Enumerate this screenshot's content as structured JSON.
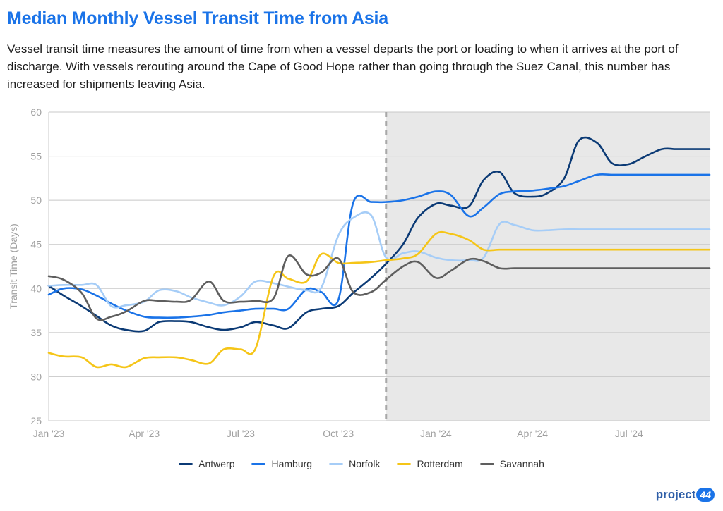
{
  "title": "Median Monthly Vessel Transit Time from Asia",
  "subtitle": "Vessel transit time measures the amount of time from when a vessel departs the port or loading to when it arrives at the port of discharge. With vessels rerouting around the Cape of Good Hope rather than going through the Suez Canal, this number has increased for shipments leaving Asia.",
  "logo": {
    "text": "project",
    "badge": "44"
  },
  "colors": {
    "shade": "#e8e8e8",
    "grid": "#c8c8c8",
    "divider": "#a8a8a8",
    "axis_text": "#a0a0a0"
  },
  "chart_data": {
    "type": "line",
    "title": "",
    "xlabel": "",
    "ylabel": "Transit Time (Days)",
    "ylim": [
      25,
      60
    ],
    "yticks": [
      25,
      30,
      35,
      40,
      45,
      50,
      55,
      60
    ],
    "xlim": [
      "2023-01-01",
      "2024-09-15"
    ],
    "xticks": [
      {
        "date": "2023-01-01",
        "label": "Jan '23"
      },
      {
        "date": "2023-04-01",
        "label": "Apr '23"
      },
      {
        "date": "2023-07-01",
        "label": "Jul '23"
      },
      {
        "date": "2023-10-01",
        "label": "Oct '23"
      },
      {
        "date": "2024-01-01",
        "label": "Jan '24"
      },
      {
        "date": "2024-04-01",
        "label": "Apr '24"
      },
      {
        "date": "2024-07-01",
        "label": "Jul '24"
      }
    ],
    "shaded_region": {
      "start": "2023-11-15",
      "end": "2024-09-15"
    },
    "grid": true,
    "legend_position": "bottom",
    "series": [
      {
        "name": "Antwerp",
        "color": "#0b3a75",
        "x": [
          "2023-01-01",
          "2023-01-15",
          "2023-02-01",
          "2023-02-15",
          "2023-03-01",
          "2023-03-15",
          "2023-04-01",
          "2023-04-15",
          "2023-05-01",
          "2023-05-15",
          "2023-06-01",
          "2023-06-15",
          "2023-07-01",
          "2023-07-15",
          "2023-08-01",
          "2023-08-15",
          "2023-09-01",
          "2023-09-15",
          "2023-10-01",
          "2023-10-15",
          "2023-11-01",
          "2023-11-15",
          "2023-12-01",
          "2023-12-15",
          "2024-01-01",
          "2024-01-15",
          "2024-02-01",
          "2024-02-15",
          "2024-03-01",
          "2024-03-15",
          "2024-04-01",
          "2024-04-15",
          "2024-05-01",
          "2024-05-15",
          "2024-06-01",
          "2024-06-15",
          "2024-07-01",
          "2024-07-15",
          "2024-08-01",
          "2024-08-15",
          "2024-09-01",
          "2024-09-15"
        ],
        "y": [
          40.3,
          39.2,
          38.0,
          36.9,
          35.8,
          35.3,
          35.2,
          36.2,
          36.3,
          36.2,
          35.6,
          35.3,
          35.6,
          36.2,
          35.8,
          35.5,
          37.3,
          37.7,
          38.0,
          39.5,
          41.2,
          42.8,
          45.0,
          48.0,
          49.6,
          49.4,
          49.3,
          52.3,
          53.2,
          50.8,
          50.4,
          50.8,
          52.5,
          56.8,
          56.5,
          54.2,
          54.1,
          54.9,
          55.8,
          55.8,
          55.8,
          55.8
        ]
      },
      {
        "name": "Hamburg",
        "color": "#1a73e8",
        "x": [
          "2023-01-01",
          "2023-01-15",
          "2023-02-01",
          "2023-02-15",
          "2023-03-01",
          "2023-03-15",
          "2023-04-01",
          "2023-04-15",
          "2023-05-01",
          "2023-05-15",
          "2023-06-01",
          "2023-06-15",
          "2023-07-01",
          "2023-07-15",
          "2023-08-01",
          "2023-08-15",
          "2023-09-01",
          "2023-09-15",
          "2023-10-01",
          "2023-10-15",
          "2023-11-01",
          "2023-11-15",
          "2023-12-01",
          "2023-12-15",
          "2024-01-01",
          "2024-01-15",
          "2024-02-01",
          "2024-02-15",
          "2024-03-01",
          "2024-03-15",
          "2024-04-01",
          "2024-04-15",
          "2024-05-01",
          "2024-05-15",
          "2024-06-01",
          "2024-06-15",
          "2024-07-01",
          "2024-07-15",
          "2024-08-01",
          "2024-08-15",
          "2024-09-01",
          "2024-09-15"
        ],
        "y": [
          39.3,
          40.0,
          39.9,
          39.2,
          38.3,
          37.5,
          36.8,
          36.7,
          36.7,
          36.8,
          37.0,
          37.3,
          37.5,
          37.7,
          37.7,
          37.7,
          39.9,
          39.6,
          38.7,
          49.7,
          49.8,
          49.8,
          50.0,
          50.4,
          51.0,
          50.6,
          48.2,
          49.2,
          50.7,
          51.0,
          51.1,
          51.3,
          51.6,
          52.2,
          52.9,
          52.9,
          52.9,
          52.9,
          52.9,
          52.9,
          52.9,
          52.9
        ]
      },
      {
        "name": "Norfolk",
        "color": "#a6cdf7",
        "x": [
          "2023-01-01",
          "2023-01-15",
          "2023-02-01",
          "2023-02-15",
          "2023-03-01",
          "2023-03-15",
          "2023-04-01",
          "2023-04-15",
          "2023-05-01",
          "2023-05-15",
          "2023-06-01",
          "2023-06-15",
          "2023-07-01",
          "2023-07-15",
          "2023-08-01",
          "2023-08-15",
          "2023-09-01",
          "2023-09-15",
          "2023-10-01",
          "2023-10-15",
          "2023-11-01",
          "2023-11-15",
          "2023-12-01",
          "2023-12-15",
          "2024-01-01",
          "2024-01-15",
          "2024-02-01",
          "2024-02-15",
          "2024-03-01",
          "2024-03-15",
          "2024-04-01",
          "2024-04-15",
          "2024-05-01",
          "2024-05-15",
          "2024-06-01",
          "2024-06-15",
          "2024-07-01",
          "2024-07-15",
          "2024-08-01",
          "2024-08-15",
          "2024-09-01",
          "2024-09-15"
        ],
        "y": [
          40.3,
          40.4,
          40.4,
          40.4,
          38.0,
          38.1,
          38.5,
          39.8,
          39.7,
          39.0,
          38.4,
          38.1,
          39.1,
          40.8,
          40.6,
          40.2,
          39.8,
          40.1,
          46.0,
          48.0,
          48.3,
          43.5,
          44.0,
          44.2,
          43.5,
          43.2,
          43.2,
          43.5,
          47.3,
          47.2,
          46.6,
          46.6,
          46.7,
          46.7,
          46.7,
          46.7,
          46.7,
          46.7,
          46.7,
          46.7,
          46.7,
          46.7
        ]
      },
      {
        "name": "Rotterdam",
        "color": "#f5c518",
        "x": [
          "2023-01-01",
          "2023-01-15",
          "2023-02-01",
          "2023-02-15",
          "2023-03-01",
          "2023-03-15",
          "2023-04-01",
          "2023-04-15",
          "2023-05-01",
          "2023-05-15",
          "2023-06-01",
          "2023-06-15",
          "2023-07-01",
          "2023-07-15",
          "2023-08-01",
          "2023-08-15",
          "2023-09-01",
          "2023-09-15",
          "2023-10-01",
          "2023-10-15",
          "2023-11-01",
          "2023-11-15",
          "2023-12-01",
          "2023-12-15",
          "2024-01-01",
          "2024-01-15",
          "2024-02-01",
          "2024-02-15",
          "2024-03-01",
          "2024-03-15",
          "2024-04-01",
          "2024-04-15",
          "2024-05-01",
          "2024-05-15",
          "2024-06-01",
          "2024-06-15",
          "2024-07-01",
          "2024-07-15",
          "2024-08-01",
          "2024-08-15",
          "2024-09-01",
          "2024-09-15"
        ],
        "y": [
          32.7,
          32.3,
          32.2,
          31.1,
          31.4,
          31.1,
          32.1,
          32.2,
          32.2,
          31.9,
          31.5,
          33.1,
          33.1,
          33.2,
          41.4,
          41.1,
          40.8,
          43.9,
          42.9,
          42.9,
          43.0,
          43.2,
          43.4,
          43.9,
          46.2,
          46.2,
          45.5,
          44.4,
          44.4,
          44.4,
          44.4,
          44.4,
          44.4,
          44.4,
          44.4,
          44.4,
          44.4,
          44.4,
          44.4,
          44.4,
          44.4,
          44.4
        ]
      },
      {
        "name": "Savannah",
        "color": "#5e5e5e",
        "x": [
          "2023-01-01",
          "2023-01-15",
          "2023-02-01",
          "2023-02-15",
          "2023-03-01",
          "2023-03-15",
          "2023-04-01",
          "2023-04-15",
          "2023-05-01",
          "2023-05-15",
          "2023-06-01",
          "2023-06-15",
          "2023-07-01",
          "2023-07-15",
          "2023-08-01",
          "2023-08-15",
          "2023-09-01",
          "2023-09-15",
          "2023-10-01",
          "2023-10-15",
          "2023-11-01",
          "2023-11-15",
          "2023-12-01",
          "2023-12-15",
          "2024-01-01",
          "2024-01-15",
          "2024-02-01",
          "2024-02-15",
          "2024-03-01",
          "2024-03-15",
          "2024-04-01",
          "2024-04-15",
          "2024-05-01",
          "2024-05-15",
          "2024-06-01",
          "2024-06-15",
          "2024-07-01",
          "2024-07-15",
          "2024-08-01",
          "2024-08-15",
          "2024-09-01",
          "2024-09-15"
        ],
        "y": [
          41.4,
          41.0,
          39.5,
          36.6,
          36.8,
          37.4,
          38.6,
          38.6,
          38.5,
          38.7,
          40.8,
          38.6,
          38.5,
          38.6,
          38.9,
          43.7,
          41.6,
          41.8,
          43.4,
          39.6,
          39.6,
          41.0,
          42.5,
          43.0,
          41.2,
          42.0,
          43.3,
          43.1,
          42.3,
          42.3,
          42.3,
          42.3,
          42.3,
          42.3,
          42.3,
          42.3,
          42.3,
          42.3,
          42.3,
          42.3,
          42.3,
          42.3
        ]
      }
    ]
  }
}
